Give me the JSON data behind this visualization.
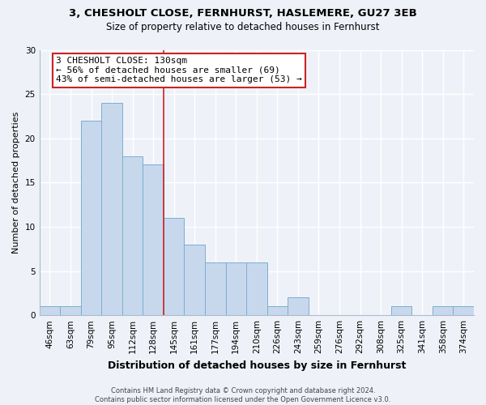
{
  "title": "3, CHESHOLT CLOSE, FERNHURST, HASLEMERE, GU27 3EB",
  "subtitle": "Size of property relative to detached houses in Fernhurst",
  "xlabel": "Distribution of detached houses by size in Fernhurst",
  "ylabel": "Number of detached properties",
  "footer_line1": "Contains HM Land Registry data © Crown copyright and database right 2024.",
  "footer_line2": "Contains public sector information licensed under the Open Government Licence v3.0.",
  "bar_labels": [
    "46sqm",
    "63sqm",
    "79sqm",
    "95sqm",
    "112sqm",
    "128sqm",
    "145sqm",
    "161sqm",
    "177sqm",
    "194sqm",
    "210sqm",
    "226sqm",
    "243sqm",
    "259sqm",
    "276sqm",
    "292sqm",
    "308sqm",
    "325sqm",
    "341sqm",
    "358sqm",
    "374sqm"
  ],
  "bar_values": [
    1,
    1,
    22,
    24,
    18,
    17,
    11,
    8,
    6,
    6,
    6,
    1,
    2,
    0,
    0,
    0,
    0,
    1,
    0,
    1,
    1
  ],
  "bar_color": "#c8d8ec",
  "bar_edge_color": "#7aaed0",
  "ylim": [
    0,
    30
  ],
  "yticks": [
    0,
    5,
    10,
    15,
    20,
    25,
    30
  ],
  "ref_line_color": "#cc2222",
  "annotation_title": "3 CHESHOLT CLOSE: 130sqm",
  "annotation_line1": "← 56% of detached houses are smaller (69)",
  "annotation_line2": "43% of semi-detached houses are larger (53) →",
  "bg_color": "#eef2f8",
  "grid_color": "#ffffff",
  "annotation_box_color": "#ffffff",
  "annotation_box_edge": "#cc2222",
  "title_fontsize": 9.5,
  "subtitle_fontsize": 8.5,
  "ylabel_fontsize": 8,
  "xlabel_fontsize": 9,
  "tick_fontsize": 7.5,
  "annotation_fontsize": 8,
  "footer_fontsize": 6
}
